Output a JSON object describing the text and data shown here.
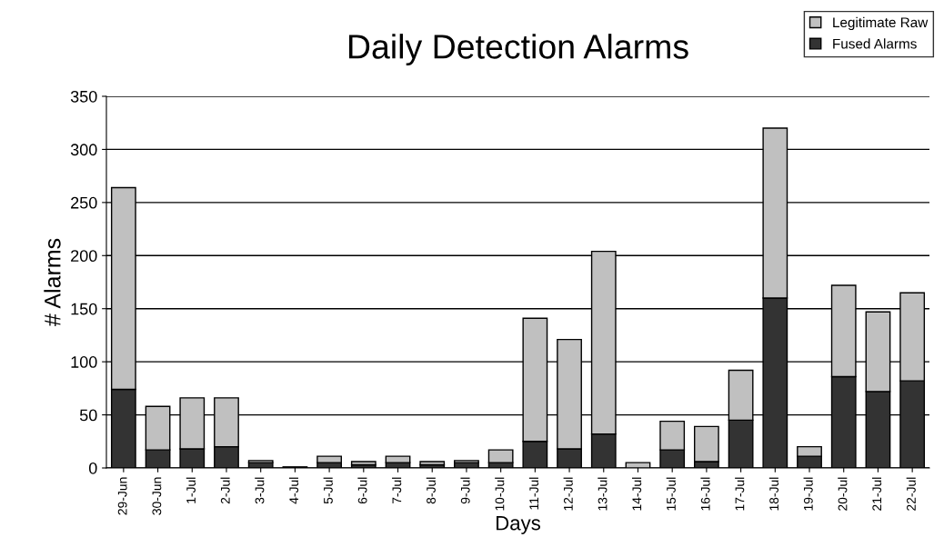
{
  "chart_data": {
    "type": "bar",
    "title": "Daily Detection Alarms",
    "xlabel": "Days",
    "ylabel": "# Alarms",
    "stacked": true,
    "categories": [
      "29-Jun",
      "30-Jun",
      "1-Jul",
      "2-Jul",
      "3-Jul",
      "4-Jul",
      "5-Jul",
      "6-Jul",
      "7-Jul",
      "8-Jul",
      "9-Jul",
      "10-Jul",
      "11-Jul",
      "12-Jul",
      "13-Jul",
      "14-Jul",
      "15-Jul",
      "16-Jul",
      "17-Jul",
      "18-Jul",
      "19-Jul",
      "20-Jul",
      "21-Jul",
      "22-Jul"
    ],
    "series": [
      {
        "name": "Fused Alarms",
        "color": "#333333",
        "values": [
          74,
          17,
          18,
          20,
          5,
          1,
          5,
          3,
          5,
          3,
          5,
          5,
          25,
          18,
          32,
          null,
          17,
          6,
          45,
          160,
          11,
          86,
          72,
          82
        ]
      },
      {
        "name": "Legitimate Raw",
        "color": "#c0c0c0",
        "values": [
          190,
          41,
          48,
          46,
          2,
          null,
          6,
          3,
          6,
          3,
          2,
          12,
          116,
          103,
          172,
          5,
          27,
          33,
          47,
          160,
          9,
          86,
          75,
          83
        ]
      }
    ],
    "ylim": [
      0,
      350
    ],
    "yticks": [
      0,
      50,
      100,
      150,
      200,
      250,
      300,
      350
    ],
    "grid": "y",
    "legend": "top right"
  }
}
